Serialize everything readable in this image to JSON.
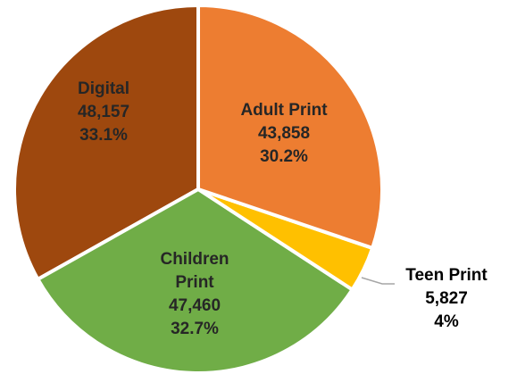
{
  "chart_data": {
    "type": "pie",
    "categories": [
      "Adult Print",
      "Teen Print",
      "Children Print",
      "Digital"
    ],
    "values": [
      43858,
      5827,
      47460,
      48157
    ],
    "value_labels": [
      "43,858",
      "5,827",
      "47,460",
      "48,157"
    ],
    "percent_labels": [
      "30.2%",
      "4%",
      "32.7%",
      "33.1%"
    ],
    "colors": [
      "#ED7D31",
      "#FFC000",
      "#70AD47",
      "#9E480E"
    ]
  }
}
